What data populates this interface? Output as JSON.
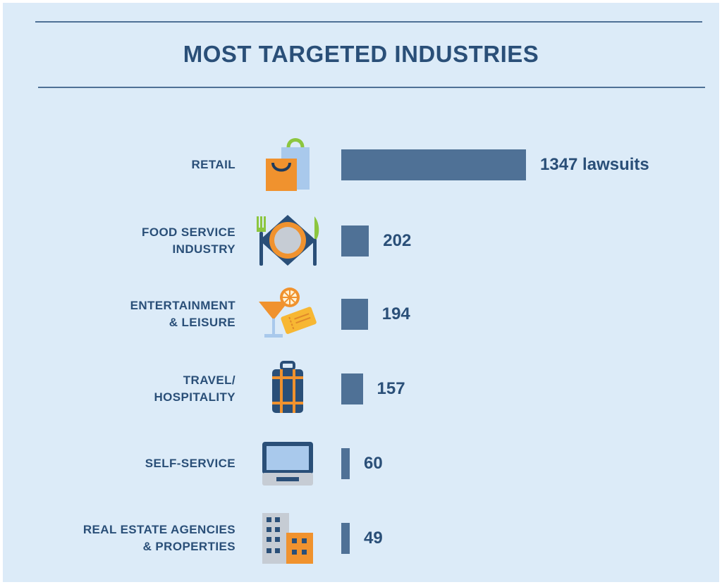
{
  "title": "MOST TARGETED INDUSTRIES",
  "chart_data": {
    "type": "bar",
    "orientation": "horizontal",
    "title": "MOST TARGETED INDUSTRIES",
    "categories": [
      [
        "RETAIL"
      ],
      [
        "FOOD SERVICE",
        "INDUSTRY"
      ],
      [
        "ENTERTAINMENT",
        "& LEISURE"
      ],
      [
        "TRAVEL/",
        "HOSPITALITY"
      ],
      [
        "SELF-SERVICE"
      ],
      [
        "REAL ESTATE AGENCIES",
        "& PROPERTIES"
      ]
    ],
    "values": [
      1347,
      202,
      194,
      157,
      60,
      49
    ],
    "value_labels": [
      "1347 lawsuits",
      "202",
      "194",
      "157",
      "60",
      "49"
    ],
    "icons": [
      "shopping-bags-icon",
      "plate-cutlery-icon",
      "cocktail-tickets-icon",
      "suitcase-icon",
      "kiosk-terminal-icon",
      "buildings-icon"
    ],
    "grid": false,
    "legend": "none"
  },
  "colors": {
    "background": "#dcebf8",
    "bar": "#4f7196",
    "text": "#2a4f78",
    "accent_orange": "#f0922e",
    "accent_green": "#8cc63f"
  }
}
